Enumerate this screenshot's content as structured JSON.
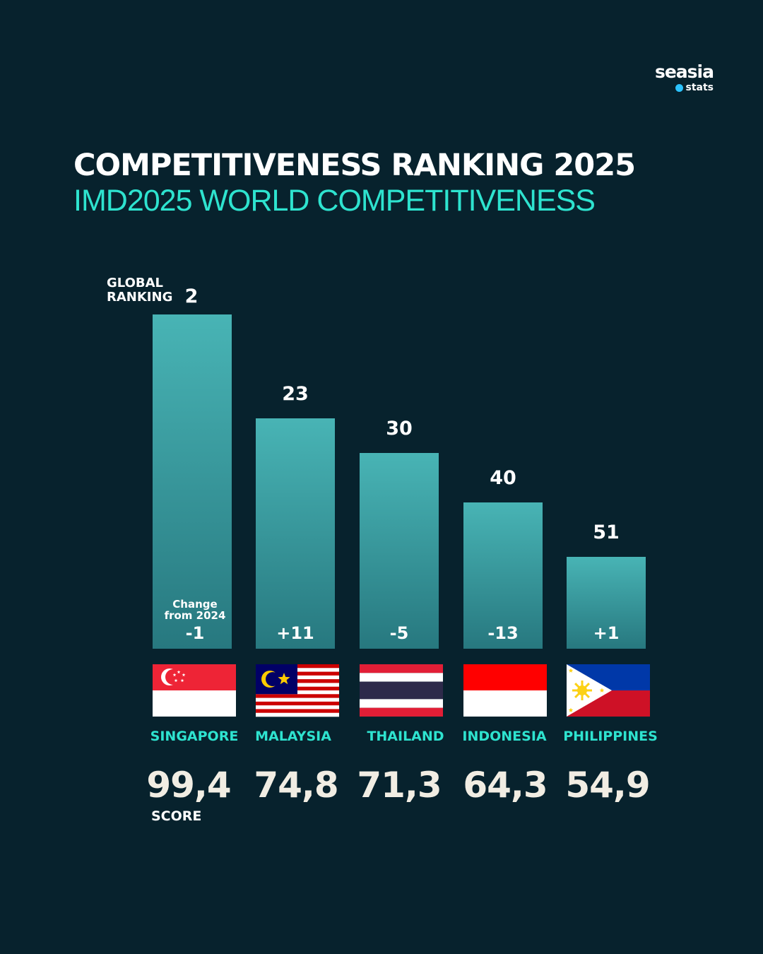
{
  "brand": {
    "name": "seasia",
    "sub": "stats"
  },
  "header": {
    "title": "COMPETITIVENESS RANKING 2025",
    "subtitle": "IMD2025 WORLD COMPETITIVENESS"
  },
  "colors": {
    "background": "#07222d",
    "accent": "#2ee3cf",
    "bar_top": "#48b4b5",
    "bar_bottom": "#27787f",
    "score_text": "#f1ede3"
  },
  "captions": {
    "rank_line1": "GLOBAL",
    "rank_line2": "RANKING",
    "change_line1": "Change",
    "change_line2": "from 2024",
    "score": "SCORE"
  },
  "chart_data": {
    "type": "bar",
    "categories": [
      "SINGAPORE",
      "MALAYSIA",
      "THAILAND",
      "INDONESIA",
      "PHILIPPINES"
    ],
    "rank": [
      2,
      23,
      30,
      40,
      51
    ],
    "rank_labels": [
      "2",
      "23",
      "30",
      "40",
      "51"
    ],
    "change_from_2024": [
      "-1",
      "+11",
      "-5",
      "-13",
      "+1"
    ],
    "scores": [
      "99,4",
      "74,8",
      "71,3",
      "64,3",
      "54,9"
    ],
    "flags": [
      "singapore-flag",
      "malaysia-flag",
      "thailand-flag",
      "indonesia-flag",
      "philippines-flag"
    ]
  }
}
